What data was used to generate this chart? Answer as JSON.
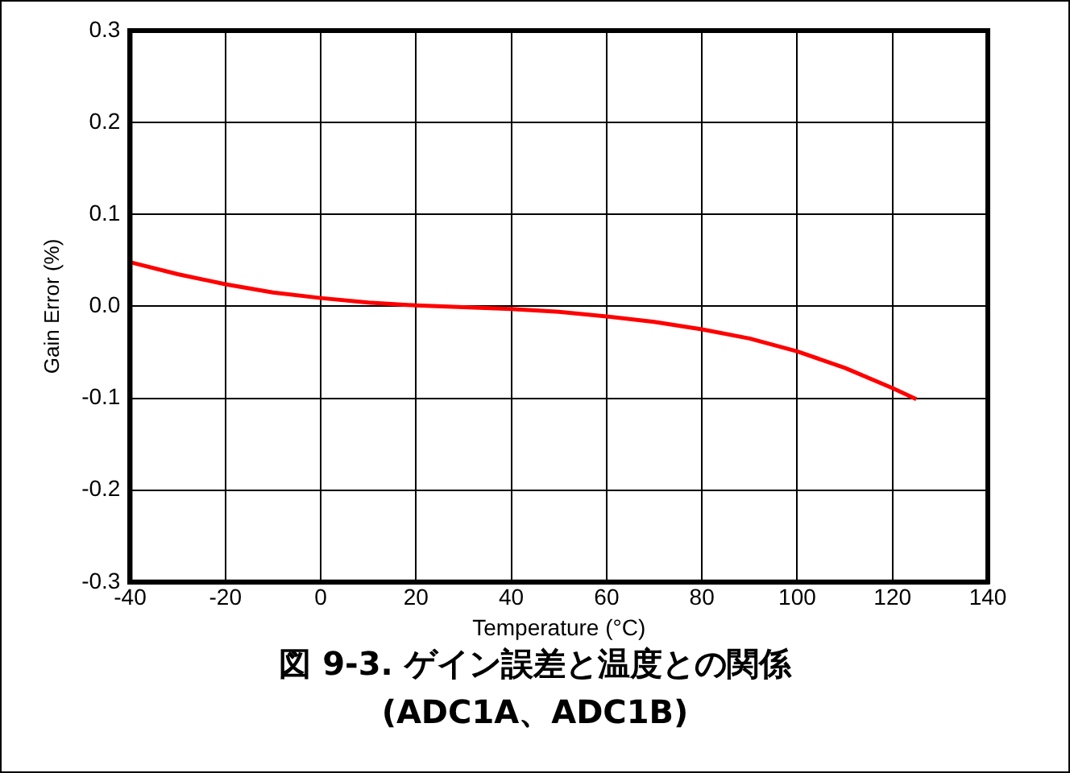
{
  "chart_data": {
    "type": "line",
    "title": "図 9-3. ゲイン誤差と温度との関係",
    "subtitle": "(ADC1A、ADC1B)",
    "xlabel": "Temperature (°C)",
    "ylabel": "Gain Error (%)",
    "x": [
      -40,
      -30,
      -20,
      -10,
      0,
      10,
      20,
      30,
      40,
      50,
      60,
      70,
      80,
      90,
      100,
      110,
      120,
      125
    ],
    "series": [
      {
        "color": "#ff0000",
        "values": [
          0.048,
          0.035,
          0.024,
          0.015,
          0.009,
          0.004,
          0.001,
          -0.001,
          -0.003,
          -0.006,
          -0.011,
          -0.017,
          -0.025,
          -0.035,
          -0.049,
          -0.067,
          -0.089,
          -0.101
        ]
      }
    ],
    "xlim": [
      -40,
      140
    ],
    "xticks": [
      -40,
      -20,
      0,
      20,
      40,
      60,
      80,
      100,
      120,
      140
    ],
    "ylim": [
      -0.3,
      0.3
    ],
    "yticks": [
      -0.3,
      -0.2,
      -0.1,
      {
        "value": 0,
        "label": "0.0"
      },
      0.1,
      0.2,
      0.3
    ],
    "grid": true,
    "legend": false,
    "marker": "none",
    "line_style": "solid"
  }
}
